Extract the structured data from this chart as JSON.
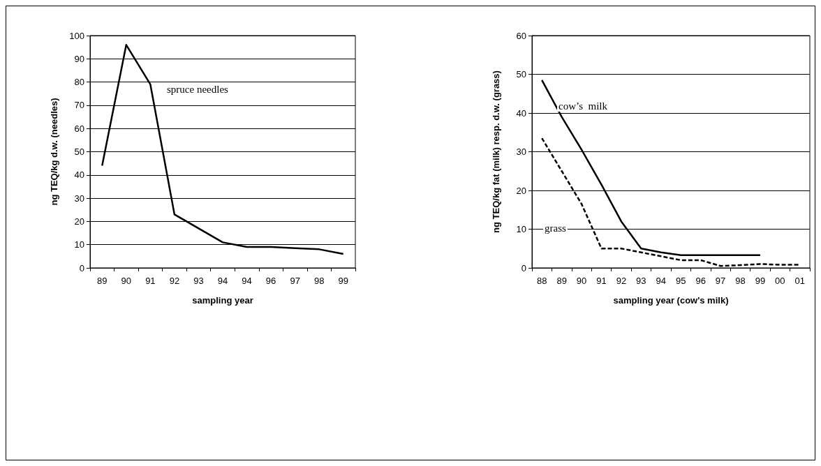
{
  "chart_data": [
    {
      "type": "line",
      "xlabel": "sampling year",
      "ylabel": "ng TEQ/kg d.w. (needles)",
      "categories": [
        "89",
        "90",
        "91",
        "92",
        "93",
        "94",
        "94",
        "96",
        "97",
        "98",
        "99"
      ],
      "series": [
        {
          "color": "#000000",
          "values": [
            44,
            96,
            79,
            23,
            17,
            11,
            9,
            9,
            8.5,
            8,
            6
          ]
        }
      ],
      "ylim": [
        0,
        100
      ],
      "yticks": [
        0,
        10,
        20,
        30,
        40,
        50,
        60,
        70,
        80,
        90,
        100
      ],
      "grid": "y",
      "marker": "none",
      "line_style": "solid",
      "annotations": [
        "spruce needles"
      ]
    },
    {
      "type": "line",
      "xlabel": "sampling year (cow's milk)",
      "ylabel": "ng TEQ/kg fat (milk) resp. d.w. (grass)",
      "categories": [
        "88",
        "89",
        "90",
        "91",
        "92",
        "93",
        "94",
        "95",
        "96",
        "97",
        "98",
        "99",
        "00",
        "01"
      ],
      "series": [
        {
          "color": "#000000",
          "line_style": "solid",
          "values": [
            48.5,
            39,
            30.5,
            21.5,
            12,
            5,
            4,
            3.3,
            3.3,
            3.3,
            3.3,
            3.3,
            null,
            null
          ]
        },
        {
          "color": "#000000",
          "line_style": "dashed",
          "values": [
            33.5,
            25,
            16.5,
            5,
            5,
            4,
            3,
            2,
            2,
            0.5,
            0.7,
            1,
            0.8,
            0.8
          ]
        }
      ],
      "ylim": [
        0,
        60
      ],
      "yticks": [
        0,
        10,
        20,
        30,
        40,
        50,
        60
      ],
      "grid": "y",
      "marker": "none",
      "annotations": [
        "cow’s  milk",
        "grass"
      ]
    }
  ]
}
